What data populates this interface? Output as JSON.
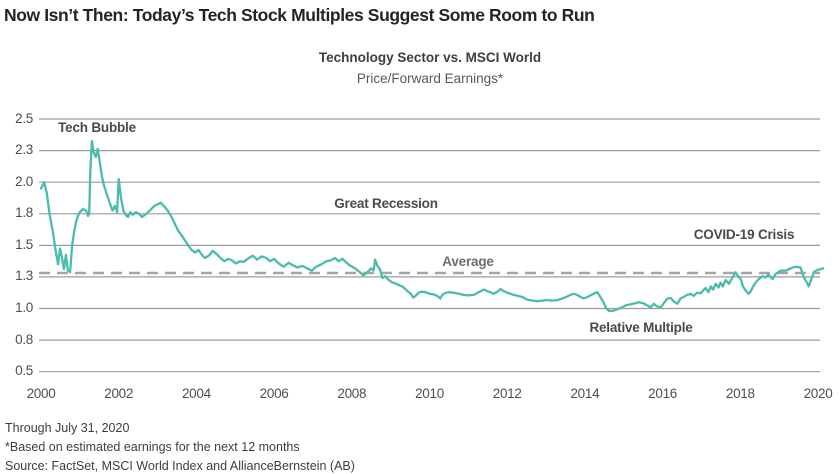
{
  "page": {
    "title": "Now Isn’t Then: Today’s Tech Stock Multiples Suggest Some Room to Run",
    "footnotes": [
      "Through July 31, 2020",
      "*Based on estimated earnings for the next 12 months",
      "Source: FactSet, MSCI World Index and AllianceBernstein (AB)"
    ]
  },
  "chart_data": {
    "type": "line",
    "title": "Technology Sector vs. MSCI World",
    "subtitle": "Price/Forward Earnings*",
    "grid": true,
    "line_color": "#4ABCAB",
    "grid_color": "#9c9c9c",
    "average_line": {
      "label": "Average",
      "value": 1.325,
      "color": "#a5a5a5",
      "style": "dashed"
    },
    "annotations": [
      {
        "id": "tech-bubble",
        "text": "Tech Bubble"
      },
      {
        "id": "great-recession",
        "text": "Great Recession"
      },
      {
        "id": "covid-19-crisis",
        "text": "COVID-19 Crisis"
      },
      {
        "id": "relative-multiple",
        "text": "Relative Multiple"
      }
    ],
    "y_ticks": [
      "2.5",
      "2.3",
      "2.0",
      "1.8",
      "1.5",
      "1.3",
      "1.0",
      "0.8",
      "0.5"
    ],
    "x_ticks": [
      {
        "label": "2000",
        "t": 0
      },
      {
        "label": "2002",
        "t": 2
      },
      {
        "label": "2004",
        "t": 4
      },
      {
        "label": "2006",
        "t": 6
      },
      {
        "label": "2008",
        "t": 8
      },
      {
        "label": "2010",
        "t": 10
      },
      {
        "label": "2012",
        "t": 12
      },
      {
        "label": "2014",
        "t": 14
      },
      {
        "label": "2016",
        "t": 16
      },
      {
        "label": "2018",
        "t": 18
      },
      {
        "label": "2020",
        "t": 20
      }
    ],
    "x_range_years": [
      2000,
      2020.58
    ],
    "series": [
      {
        "name": "Relative Multiple",
        "points": [
          [
            0,
            1.96
          ],
          [
            0.08,
            2.0
          ],
          [
            0.15,
            1.93
          ],
          [
            0.22,
            1.8
          ],
          [
            0.31,
            1.62
          ],
          [
            0.38,
            1.46
          ],
          [
            0.44,
            1.38
          ],
          [
            0.49,
            1.48
          ],
          [
            0.54,
            1.42
          ],
          [
            0.59,
            1.35
          ],
          [
            0.64,
            1.44
          ],
          [
            0.69,
            1.34
          ],
          [
            0.75,
            1.33
          ],
          [
            0.8,
            1.5
          ],
          [
            0.85,
            1.62
          ],
          [
            0.9,
            1.72
          ],
          [
            0.95,
            1.78
          ],
          [
            1.0,
            1.81
          ],
          [
            1.08,
            1.83
          ],
          [
            1.16,
            1.82
          ],
          [
            1.21,
            1.78
          ],
          [
            1.24,
            1.8
          ],
          [
            1.27,
            2.1
          ],
          [
            1.31,
            2.36
          ],
          [
            1.36,
            2.28
          ],
          [
            1.41,
            2.24
          ],
          [
            1.46,
            2.31
          ],
          [
            1.52,
            2.17
          ],
          [
            1.57,
            2.05
          ],
          [
            1.62,
            1.98
          ],
          [
            1.7,
            1.92
          ],
          [
            1.78,
            1.86
          ],
          [
            1.84,
            1.82
          ],
          [
            1.9,
            1.85
          ],
          [
            1.96,
            1.81
          ],
          [
            2.0,
            2.03
          ],
          [
            2.06,
            1.9
          ],
          [
            2.12,
            1.82
          ],
          [
            2.18,
            1.79
          ],
          [
            2.24,
            1.77
          ],
          [
            2.3,
            1.81
          ],
          [
            2.36,
            1.79
          ],
          [
            2.44,
            1.81
          ],
          [
            2.52,
            1.8
          ],
          [
            2.6,
            1.77
          ],
          [
            2.68,
            1.79
          ],
          [
            2.76,
            1.81
          ],
          [
            2.84,
            1.83
          ],
          [
            2.92,
            1.85
          ],
          [
            3.0,
            1.86
          ],
          [
            3.08,
            1.87
          ],
          [
            3.16,
            1.85
          ],
          [
            3.26,
            1.82
          ],
          [
            3.36,
            1.77
          ],
          [
            3.45,
            1.7
          ],
          [
            3.53,
            1.64
          ],
          [
            3.61,
            1.6
          ],
          [
            3.7,
            1.55
          ],
          [
            3.79,
            1.5
          ],
          [
            3.88,
            1.47
          ],
          [
            3.97,
            1.455
          ],
          [
            4.06,
            1.47
          ],
          [
            4.14,
            1.44
          ],
          [
            4.22,
            1.42
          ],
          [
            4.32,
            1.435
          ],
          [
            4.42,
            1.465
          ],
          [
            4.52,
            1.445
          ],
          [
            4.62,
            1.42
          ],
          [
            4.72,
            1.4
          ],
          [
            4.82,
            1.415
          ],
          [
            4.92,
            1.405
          ],
          [
            5.02,
            1.385
          ],
          [
            5.12,
            1.4
          ],
          [
            5.22,
            1.395
          ],
          [
            5.32,
            1.415
          ],
          [
            5.45,
            1.435
          ],
          [
            5.56,
            1.41
          ],
          [
            5.68,
            1.43
          ],
          [
            5.8,
            1.42
          ],
          [
            5.9,
            1.4
          ],
          [
            6.0,
            1.415
          ],
          [
            6.12,
            1.385
          ],
          [
            6.25,
            1.365
          ],
          [
            6.37,
            1.39
          ],
          [
            6.48,
            1.375
          ],
          [
            6.6,
            1.36
          ],
          [
            6.72,
            1.37
          ],
          [
            6.85,
            1.355
          ],
          [
            6.97,
            1.34
          ],
          [
            7.08,
            1.365
          ],
          [
            7.22,
            1.38
          ],
          [
            7.35,
            1.4
          ],
          [
            7.46,
            1.405
          ],
          [
            7.57,
            1.42
          ],
          [
            7.66,
            1.4
          ],
          [
            7.76,
            1.415
          ],
          [
            7.86,
            1.39
          ],
          [
            7.97,
            1.37
          ],
          [
            8.08,
            1.355
          ],
          [
            8.18,
            1.335
          ],
          [
            8.3,
            1.31
          ],
          [
            8.4,
            1.33
          ],
          [
            8.5,
            1.355
          ],
          [
            8.56,
            1.34
          ],
          [
            8.6,
            1.41
          ],
          [
            8.66,
            1.37
          ],
          [
            8.72,
            1.35
          ],
          [
            8.79,
            1.29
          ],
          [
            8.86,
            1.305
          ],
          [
            8.94,
            1.275
          ],
          [
            9.03,
            1.25
          ],
          [
            9.12,
            1.24
          ],
          [
            9.2,
            1.225
          ],
          [
            9.3,
            1.21
          ],
          [
            9.38,
            1.185
          ],
          [
            9.45,
            1.16
          ],
          [
            9.52,
            1.14
          ],
          [
            9.58,
            1.105
          ],
          [
            9.64,
            1.12
          ],
          [
            9.72,
            1.15
          ],
          [
            9.8,
            1.16
          ],
          [
            9.9,
            1.155
          ],
          [
            10.0,
            1.14
          ],
          [
            10.1,
            1.135
          ],
          [
            10.2,
            1.12
          ],
          [
            10.28,
            1.095
          ],
          [
            10.33,
            1.13
          ],
          [
            10.42,
            1.15
          ],
          [
            10.5,
            1.155
          ],
          [
            10.62,
            1.15
          ],
          [
            10.75,
            1.14
          ],
          [
            10.88,
            1.13
          ],
          [
            11.0,
            1.125
          ],
          [
            11.14,
            1.13
          ],
          [
            11.24,
            1.15
          ],
          [
            11.32,
            1.165
          ],
          [
            11.4,
            1.18
          ],
          [
            11.49,
            1.165
          ],
          [
            11.57,
            1.155
          ],
          [
            11.65,
            1.14
          ],
          [
            11.75,
            1.16
          ],
          [
            11.83,
            1.185
          ],
          [
            11.91,
            1.165
          ],
          [
            12.0,
            1.15
          ],
          [
            12.09,
            1.14
          ],
          [
            12.17,
            1.13
          ],
          [
            12.28,
            1.12
          ],
          [
            12.39,
            1.11
          ],
          [
            12.52,
            1.085
          ],
          [
            12.65,
            1.075
          ],
          [
            12.78,
            1.07
          ],
          [
            12.9,
            1.075
          ],
          [
            13.03,
            1.08
          ],
          [
            13.16,
            1.075
          ],
          [
            13.29,
            1.08
          ],
          [
            13.42,
            1.095
          ],
          [
            13.55,
            1.115
          ],
          [
            13.63,
            1.13
          ],
          [
            13.71,
            1.14
          ],
          [
            13.8,
            1.13
          ],
          [
            13.89,
            1.11
          ],
          [
            13.97,
            1.095
          ],
          [
            14.06,
            1.11
          ],
          [
            14.15,
            1.125
          ],
          [
            14.22,
            1.14
          ],
          [
            14.32,
            1.155
          ],
          [
            14.4,
            1.11
          ],
          [
            14.48,
            1.06
          ],
          [
            14.55,
            1.0
          ],
          [
            14.62,
            0.985
          ],
          [
            14.7,
            0.985
          ],
          [
            14.78,
            0.99
          ],
          [
            14.92,
            1.005
          ],
          [
            15.05,
            1.03
          ],
          [
            15.18,
            1.04
          ],
          [
            15.3,
            1.05
          ],
          [
            15.38,
            1.06
          ],
          [
            15.5,
            1.05
          ],
          [
            15.61,
            1.03
          ],
          [
            15.69,
            1.01
          ],
          [
            15.77,
            1.045
          ],
          [
            15.86,
            1.02
          ],
          [
            15.95,
            1.01
          ],
          [
            16.03,
            1.05
          ],
          [
            16.12,
            1.095
          ],
          [
            16.21,
            1.1
          ],
          [
            16.28,
            1.07
          ],
          [
            16.38,
            1.045
          ],
          [
            16.46,
            1.095
          ],
          [
            16.54,
            1.11
          ],
          [
            16.63,
            1.13
          ],
          [
            16.72,
            1.14
          ],
          [
            16.8,
            1.12
          ],
          [
            16.89,
            1.15
          ],
          [
            16.98,
            1.145
          ],
          [
            17.04,
            1.17
          ],
          [
            17.11,
            1.195
          ],
          [
            17.18,
            1.155
          ],
          [
            17.24,
            1.21
          ],
          [
            17.3,
            1.18
          ],
          [
            17.37,
            1.235
          ],
          [
            17.44,
            1.2
          ],
          [
            17.49,
            1.245
          ],
          [
            17.55,
            1.21
          ],
          [
            17.62,
            1.27
          ],
          [
            17.71,
            1.235
          ],
          [
            17.8,
            1.295
          ],
          [
            17.88,
            1.33
          ],
          [
            17.95,
            1.3
          ],
          [
            18.01,
            1.28
          ],
          [
            18.07,
            1.21
          ],
          [
            18.14,
            1.17
          ],
          [
            18.21,
            1.14
          ],
          [
            18.27,
            1.165
          ],
          [
            18.33,
            1.21
          ],
          [
            18.39,
            1.245
          ],
          [
            18.46,
            1.275
          ],
          [
            18.52,
            1.29
          ],
          [
            18.57,
            1.305
          ],
          [
            18.65,
            1.295
          ],
          [
            18.72,
            1.315
          ],
          [
            18.78,
            1.3
          ],
          [
            18.83,
            1.28
          ],
          [
            18.91,
            1.32
          ],
          [
            19.04,
            1.34
          ],
          [
            19.17,
            1.34
          ],
          [
            19.3,
            1.355
          ],
          [
            19.42,
            1.365
          ],
          [
            19.55,
            1.36
          ],
          [
            19.63,
            1.3
          ],
          [
            19.71,
            1.25
          ],
          [
            19.76,
            1.21
          ],
          [
            19.81,
            1.26
          ],
          [
            19.89,
            1.33
          ],
          [
            19.99,
            1.345
          ],
          [
            20.07,
            1.35
          ],
          [
            20.13,
            1.355
          ]
        ]
      }
    ]
  }
}
